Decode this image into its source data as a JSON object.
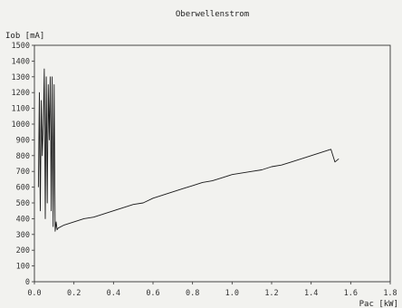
{
  "chart_data": {
    "type": "line",
    "title": "Oberwellenstrom",
    "ylabel": "Iob [mA]",
    "xlabel": "Pac [kW]",
    "xlim": [
      0,
      1.8
    ],
    "ylim": [
      0,
      1500
    ],
    "x_ticks": [
      "0.0",
      "0.2",
      "0.4",
      "0.6",
      "0.8",
      "1.0",
      "1.2",
      "1.4",
      "1.6",
      "1.8"
    ],
    "y_ticks": [
      "0",
      "100",
      "200",
      "300",
      "400",
      "500",
      "600",
      "700",
      "800",
      "900",
      "1000",
      "1100",
      "1200",
      "1300",
      "1400",
      "1500"
    ],
    "grid": false,
    "series": [
      {
        "color": "#1a1a1a",
        "x": [
          0.02,
          0.025,
          0.03,
          0.035,
          0.04,
          0.045,
          0.05,
          0.055,
          0.06,
          0.065,
          0.07,
          0.075,
          0.08,
          0.085,
          0.09,
          0.095,
          0.1,
          0.105,
          0.11,
          0.115,
          0.12,
          0.15,
          0.2,
          0.25,
          0.3,
          0.35,
          0.4,
          0.45,
          0.5,
          0.55,
          0.6,
          0.65,
          0.7,
          0.75,
          0.8,
          0.85,
          0.9,
          0.95,
          1.0,
          1.05,
          1.1,
          1.15,
          1.2,
          1.25,
          1.3,
          1.35,
          1.4,
          1.45,
          1.5,
          1.52,
          1.54
        ],
        "y": [
          600,
          1200,
          450,
          1150,
          800,
          1000,
          1350,
          400,
          1300,
          500,
          1250,
          900,
          1300,
          450,
          1300,
          350,
          1250,
          320,
          380,
          330,
          340,
          360,
          380,
          400,
          410,
          430,
          450,
          470,
          490,
          500,
          530,
          550,
          570,
          590,
          610,
          630,
          640,
          660,
          680,
          690,
          700,
          710,
          730,
          740,
          760,
          780,
          800,
          820,
          840,
          760,
          780
        ]
      }
    ]
  }
}
